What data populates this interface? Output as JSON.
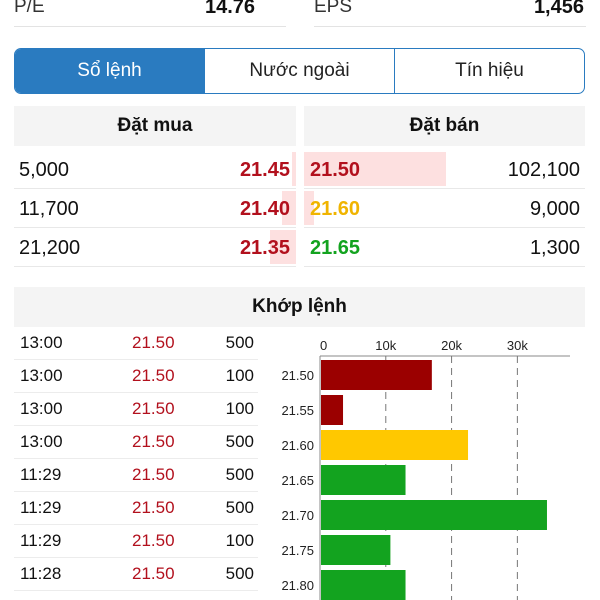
{
  "stats": [
    {
      "label": "P/E",
      "value": "14.76"
    },
    {
      "label": "EPS",
      "value": "1,456"
    }
  ],
  "tabs": [
    {
      "label": "Sổ lệnh",
      "active": true
    },
    {
      "label": "Nước ngoài",
      "active": false
    },
    {
      "label": "Tín hiệu",
      "active": false
    }
  ],
  "order_book": {
    "buy_header": "Đặt mua",
    "sell_header": "Đặt bán",
    "rows": [
      {
        "buy_volume": "5,000",
        "buy_price": "21.45",
        "buy_color": "red",
        "sell_price": "21.50",
        "sell_color": "red",
        "sell_volume": "102,100"
      },
      {
        "buy_volume": "11,700",
        "buy_price": "21.40",
        "buy_color": "red",
        "sell_price": "21.60",
        "sell_color": "yellow",
        "sell_volume": "9,000"
      },
      {
        "buy_volume": "21,200",
        "buy_price": "21.35",
        "buy_color": "red",
        "sell_price": "21.65",
        "sell_color": "green",
        "sell_volume": "1,300"
      }
    ]
  },
  "matched": {
    "header": "Khớp lệnh",
    "rows": [
      {
        "time": "13:00",
        "price": "21.50",
        "volume": "500"
      },
      {
        "time": "13:00",
        "price": "21.50",
        "volume": "100"
      },
      {
        "time": "13:00",
        "price": "21.50",
        "volume": "100"
      },
      {
        "time": "13:00",
        "price": "21.50",
        "volume": "500"
      },
      {
        "time": "11:29",
        "price": "21.50",
        "volume": "500"
      },
      {
        "time": "11:29",
        "price": "21.50",
        "volume": "500"
      },
      {
        "time": "11:29",
        "price": "21.50",
        "volume": "100"
      },
      {
        "time": "11:28",
        "price": "21.50",
        "volume": "500"
      }
    ]
  },
  "colors": {
    "red": "#9b0000",
    "yellow": "#ffc800",
    "green": "#13a31f",
    "accent": "#2a7bc0"
  },
  "chart_data": {
    "type": "bar",
    "orientation": "horizontal",
    "categories": [
      "21.50",
      "21.55",
      "21.60",
      "21.65",
      "21.70",
      "21.75",
      "21.80"
    ],
    "values": [
      17000,
      3500,
      22500,
      13000,
      34500,
      10700,
      13000
    ],
    "bar_colors": [
      "red",
      "red",
      "yellow",
      "green",
      "green",
      "green",
      "green"
    ],
    "x_ticks": [
      "0",
      "10k",
      "20k",
      "30k"
    ],
    "x_tick_values": [
      0,
      10000,
      20000,
      30000
    ],
    "xlim": [
      0,
      38000
    ],
    "grid": "dashed vertical"
  }
}
